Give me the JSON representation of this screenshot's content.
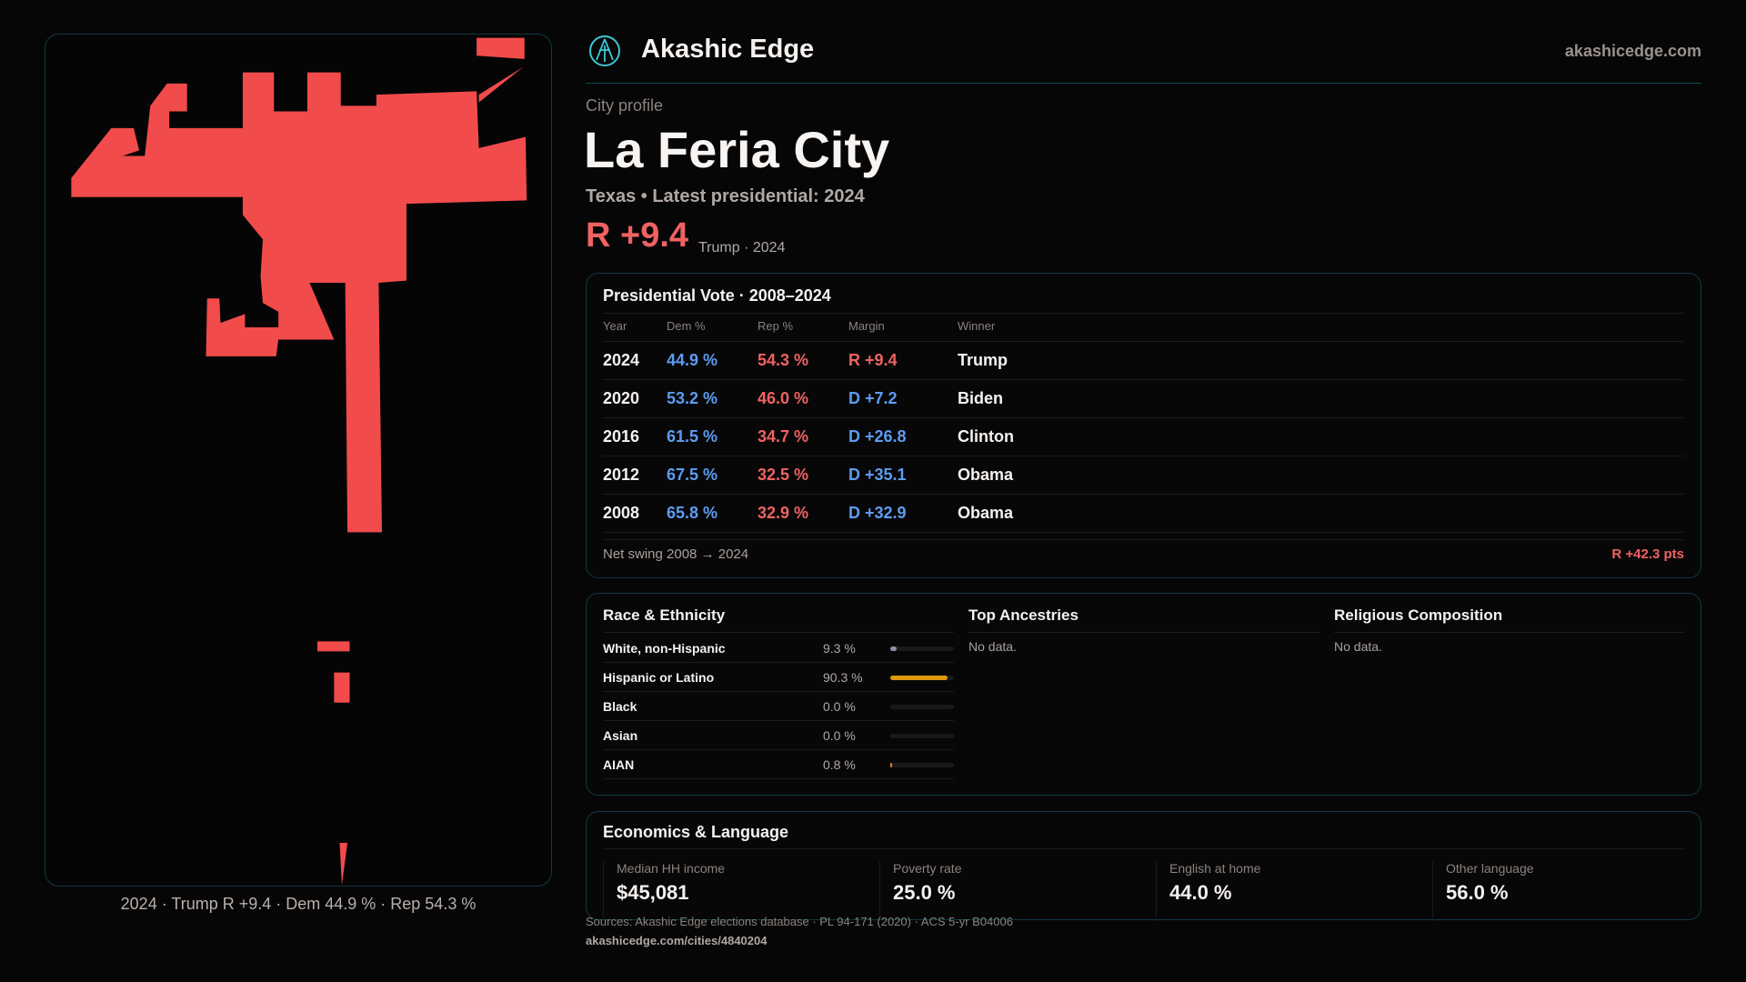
{
  "colors": {
    "republican": "#f04e4e",
    "democrat": "#5d9cf0",
    "accent": "#0f4a55",
    "hispanic_bar": "#e0980f"
  },
  "map": {
    "caption": "2024 · Trump R +9.4 · Dem 44.9 % · Rep 54.3 %",
    "fill": "#f24b4b"
  },
  "header": {
    "brand": "Akashic Edge",
    "domain": "akashicedge.com",
    "logo_icon": "akashic-edge-logo"
  },
  "profile": {
    "kicker": "City profile",
    "title": "La Feria City",
    "subtitle": "Texas • Latest presidential: 2024",
    "margin": "R +9.4",
    "margin_note": "Trump · 2024"
  },
  "vote": {
    "title": "Presidential Vote · 2008–2024",
    "columns": [
      "Year",
      "Dem %",
      "Rep %",
      "Margin",
      "Winner"
    ],
    "rows": [
      {
        "year": "2024",
        "dem": "44.9 %",
        "rep": "54.3 %",
        "margin": "R +9.4",
        "party": "rep",
        "winner": "Trump"
      },
      {
        "year": "2020",
        "dem": "53.2 %",
        "rep": "46.0 %",
        "margin": "D +7.2",
        "party": "dem",
        "winner": "Biden"
      },
      {
        "year": "2016",
        "dem": "61.5 %",
        "rep": "34.7 %",
        "margin": "D +26.8",
        "party": "dem",
        "winner": "Clinton"
      },
      {
        "year": "2012",
        "dem": "67.5 %",
        "rep": "32.5 %",
        "margin": "D +35.1",
        "party": "dem",
        "winner": "Obama"
      },
      {
        "year": "2008",
        "dem": "65.8 %",
        "rep": "32.9 %",
        "margin": "D +32.9",
        "party": "dem",
        "winner": "Obama"
      }
    ],
    "net_label": "Net swing 2008 → 2024",
    "net_value": "R +42.3 pts"
  },
  "race": {
    "title": "Race & Ethnicity",
    "rows": [
      {
        "label": "White, non-Hispanic",
        "value": "9.3 %",
        "pct": 9.3,
        "color": "#8a92a8"
      },
      {
        "label": "Hispanic or Latino",
        "value": "90.3 %",
        "pct": 90.3,
        "color": "#e0980f"
      },
      {
        "label": "Black",
        "value": "0.0 %",
        "pct": 0,
        "color": "#8a92a8"
      },
      {
        "label": "Asian",
        "value": "0.0 %",
        "pct": 0,
        "color": "#8a92a8"
      },
      {
        "label": "AIAN",
        "value": "0.8 %",
        "pct": 0.8,
        "color": "#e07a1f"
      }
    ]
  },
  "ancestries": {
    "title": "Top Ancestries",
    "empty": "No data."
  },
  "religion": {
    "title": "Religious Composition",
    "empty": "No data."
  },
  "econ": {
    "title": "Economics & Language",
    "stats": [
      {
        "label": "Median HH income",
        "value": "$45,081"
      },
      {
        "label": "Poverty rate",
        "value": "25.0 %"
      },
      {
        "label": "English at home",
        "value": "44.0 %"
      },
      {
        "label": "Other language",
        "value": "56.0 %"
      }
    ]
  },
  "footer": {
    "sources": "Sources: Akashic Edge elections database · PL 94-171 (2020) · ACS 5-yr B04006",
    "url": "akashicedge.com/cities/4840204"
  }
}
